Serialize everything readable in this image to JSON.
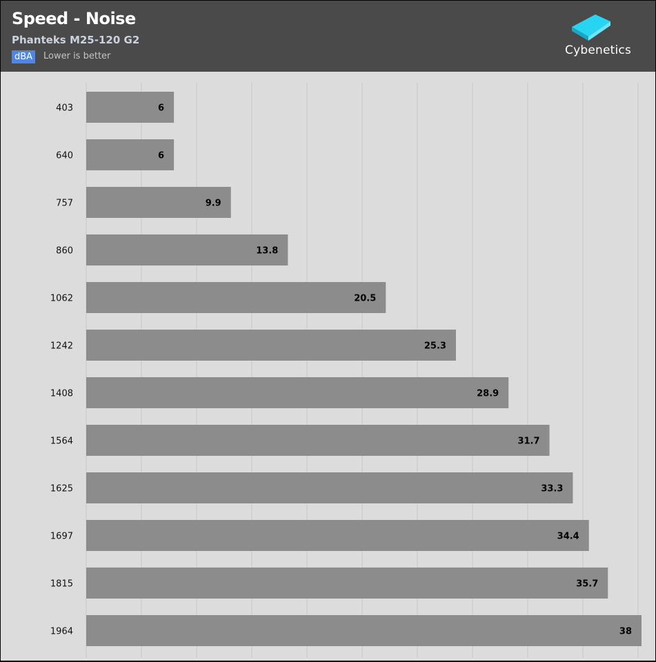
{
  "header": {
    "title": "Speed - Noise",
    "subtitle": "Phanteks M25-120 G2",
    "unit": "dBA",
    "note": "Lower is better",
    "logo_text": "Cybenetics"
  },
  "colors": {
    "header_bg": "#4a4a4a",
    "plot_bg": "#dcdcdc",
    "bar": "#8c8c8c",
    "grid": "#c8c8c8",
    "unit_badge": "#4f86e6",
    "logo_accent": "#27d5f2"
  },
  "chart_data": {
    "type": "bar",
    "orientation": "horizontal",
    "title": "Speed - Noise",
    "subtitle": "Phanteks M25-120 G2",
    "categories": [
      "403",
      "640",
      "757",
      "860",
      "1062",
      "1242",
      "1408",
      "1564",
      "1625",
      "1697",
      "1815",
      "1964"
    ],
    "values": [
      6,
      6,
      9.9,
      13.8,
      20.5,
      25.3,
      28.9,
      31.7,
      33.3,
      34.4,
      35.7,
      38
    ],
    "value_labels": [
      "6",
      "6",
      "9.9",
      "13.8",
      "20.5",
      "25.3",
      "28.9",
      "31.7",
      "33.3",
      "34.4",
      "35.7",
      "38"
    ],
    "xlim": [
      0,
      38
    ],
    "grid": true,
    "legend": "none"
  }
}
